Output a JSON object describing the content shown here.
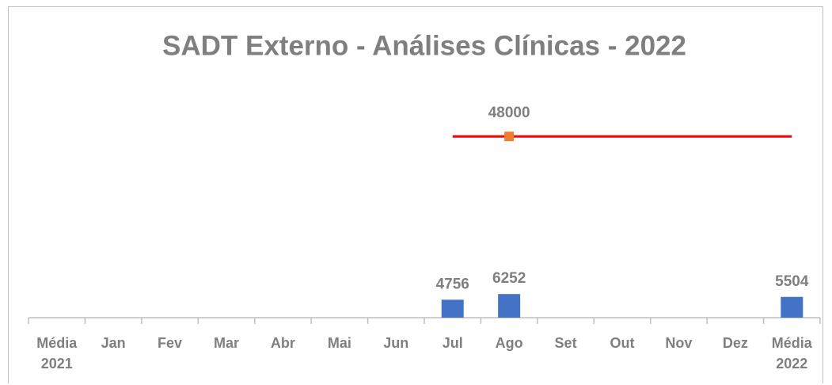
{
  "chart_data": {
    "type": "bar",
    "title": "SADT Externo - Análises Clínicas - 2022",
    "categories": [
      "Média 2021",
      "Jan",
      "Fev",
      "Mar",
      "Abr",
      "Mai",
      "Jun",
      "Jul",
      "Ago",
      "Set",
      "Out",
      "Nov",
      "Dez",
      "Média 2022"
    ],
    "ylim": [
      0,
      60000
    ],
    "series": [
      {
        "type": "bar",
        "color": "#4472c4",
        "values": [
          null,
          null,
          null,
          null,
          null,
          null,
          null,
          4756,
          6252,
          null,
          null,
          null,
          null,
          5504
        ]
      },
      {
        "type": "line",
        "color": "#ff0000",
        "values": [
          null,
          null,
          null,
          null,
          null,
          null,
          null,
          48000,
          48000,
          48000,
          48000,
          48000,
          48000,
          48000
        ]
      },
      {
        "type": "point",
        "color": "#ed7d31",
        "values": [
          null,
          null,
          null,
          null,
          null,
          null,
          null,
          null,
          48000,
          null,
          null,
          null,
          null,
          null
        ]
      }
    ]
  }
}
